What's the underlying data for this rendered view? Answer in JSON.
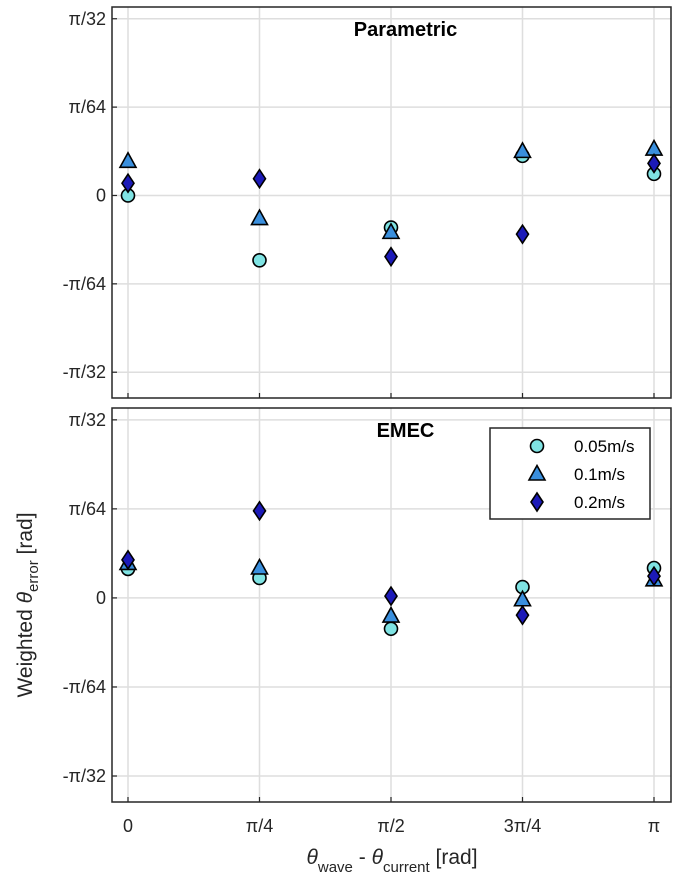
{
  "colors": {
    "series_fill": [
      "#7fe3e3",
      "#3a8fdd",
      "#1c1ab8"
    ],
    "marker_edge": "#000000",
    "grid": "#dedede",
    "axes": "#262626"
  },
  "markers": [
    "circle",
    "triangle",
    "diamond"
  ],
  "labels": {
    "ylabel_prefix": "Weighted ",
    "ylabel_symbol": "θ",
    "ylabel_sub": "error",
    "ylabel_suffix": " [rad]",
    "xlabel_sym1": "θ",
    "xlabel_sub1": "wave",
    "xlabel_mid": " - ",
    "xlabel_sym2": "θ",
    "xlabel_sub2": "current",
    "xlabel_suffix": " [rad]"
  },
  "chart_data": [
    {
      "type": "scatter",
      "title": "Parametric",
      "x": [
        "0",
        "π/4",
        "π/2",
        "3π/4",
        "π"
      ],
      "x_values_rad": [
        0,
        0.7854,
        1.5708,
        2.3562,
        3.1416
      ],
      "xlim": [
        0,
        3.1416
      ],
      "ylim": [
        -0.1125,
        0.1047
      ],
      "y_ticks": [
        {
          "value": 0.09817,
          "label": "π/32"
        },
        {
          "value": 0.04909,
          "label": "π/64"
        },
        {
          "value": 0,
          "label": "0"
        },
        {
          "value": -0.04909,
          "label": "-π/64"
        },
        {
          "value": -0.09817,
          "label": "-π/32"
        }
      ],
      "grid": true,
      "legend": false,
      "series": [
        {
          "name": "0.05m/s",
          "values": [
            0.0,
            -0.036,
            -0.0178,
            0.022,
            0.012
          ]
        },
        {
          "name": "0.1m/s",
          "values": [
            0.019,
            -0.0128,
            -0.0205,
            0.0245,
            0.0258
          ]
        },
        {
          "name": "0.2m/s",
          "values": [
            0.0068,
            0.0093,
            -0.034,
            -0.0215,
            0.0178
          ]
        }
      ]
    },
    {
      "type": "scatter",
      "title": "EMEC",
      "x": [
        "0",
        "π/4",
        "π/2",
        "3π/4",
        "π"
      ],
      "x_values_rad": [
        0,
        0.7854,
        1.5708,
        2.3562,
        3.1416
      ],
      "xlim": [
        0,
        3.1416
      ],
      "ylim": [
        -0.1125,
        0.1047
      ],
      "y_ticks": [
        {
          "value": 0.09817,
          "label": "π/32"
        },
        {
          "value": 0.04909,
          "label": "π/64"
        },
        {
          "value": 0,
          "label": "0"
        },
        {
          "value": -0.04909,
          "label": "-π/64"
        },
        {
          "value": -0.09817,
          "label": "-π/32"
        }
      ],
      "grid": true,
      "legend": "top-right",
      "series": [
        {
          "name": "0.05m/s",
          "values": [
            0.016,
            0.011,
            -0.017,
            0.006,
            0.0165
          ]
        },
        {
          "name": "0.1m/s",
          "values": [
            0.019,
            0.0165,
            -0.01,
            -0.001,
            0.01
          ]
        },
        {
          "name": "0.2m/s",
          "values": [
            0.021,
            0.048,
            0.001,
            -0.0095,
            0.012
          ]
        }
      ]
    }
  ]
}
